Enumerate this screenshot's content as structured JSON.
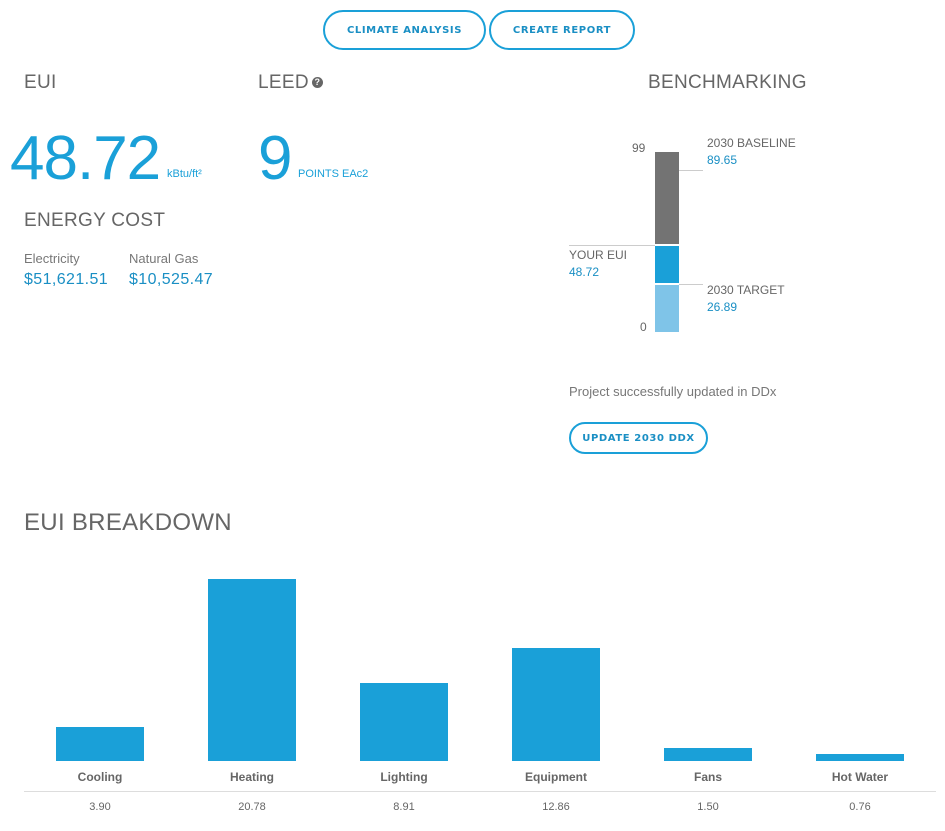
{
  "toolbar": {
    "climate_analysis_label": "CLIMATE ANALYSIS",
    "create_report_label": "CREATE REPORT"
  },
  "eui": {
    "title": "EUI",
    "value": "48.72",
    "unit": "kBtu/ft²"
  },
  "leed": {
    "title": "LEED",
    "help_icon": "question-circle-icon",
    "points": "9",
    "points_label": "POINTS EAc2"
  },
  "energy_cost": {
    "title": "ENERGY COST",
    "items": [
      {
        "label": "Electricity",
        "value": "$51,621.51"
      },
      {
        "label": "Natural Gas",
        "value": "$10,525.47"
      }
    ]
  },
  "benchmarking": {
    "title": "BENCHMARKING",
    "scale_max": "99",
    "scale_min": "0",
    "baseline_label": "2030 BASELINE",
    "baseline_value": "89.65",
    "your_eui_label": "YOUR EUI",
    "your_eui_value": "48.72",
    "target_label": "2030 TARGET",
    "target_value": "26.89",
    "status_text": "Project successfully updated in DDx",
    "update_button_label": "UPDATE 2030 DDX",
    "colors": {
      "baseline": "#737373",
      "your_eui": "#1aa0d8",
      "target": "#7fc4e8"
    }
  },
  "breakdown": {
    "title": "EUI BREAKDOWN"
  },
  "chart_data": {
    "type": "bar",
    "title": "EUI BREAKDOWN",
    "categories": [
      "Cooling",
      "Heating",
      "Lighting",
      "Equipment",
      "Fans",
      "Hot Water"
    ],
    "values": [
      3.9,
      20.78,
      8.91,
      12.86,
      1.5,
      0.76
    ],
    "value_labels": [
      "3.90",
      "20.78",
      "8.91",
      "12.86",
      "1.50",
      "0.76"
    ],
    "xlabel": "",
    "ylabel": "",
    "ylim": [
      0,
      20.78
    ],
    "color": "#1aa0d8"
  }
}
